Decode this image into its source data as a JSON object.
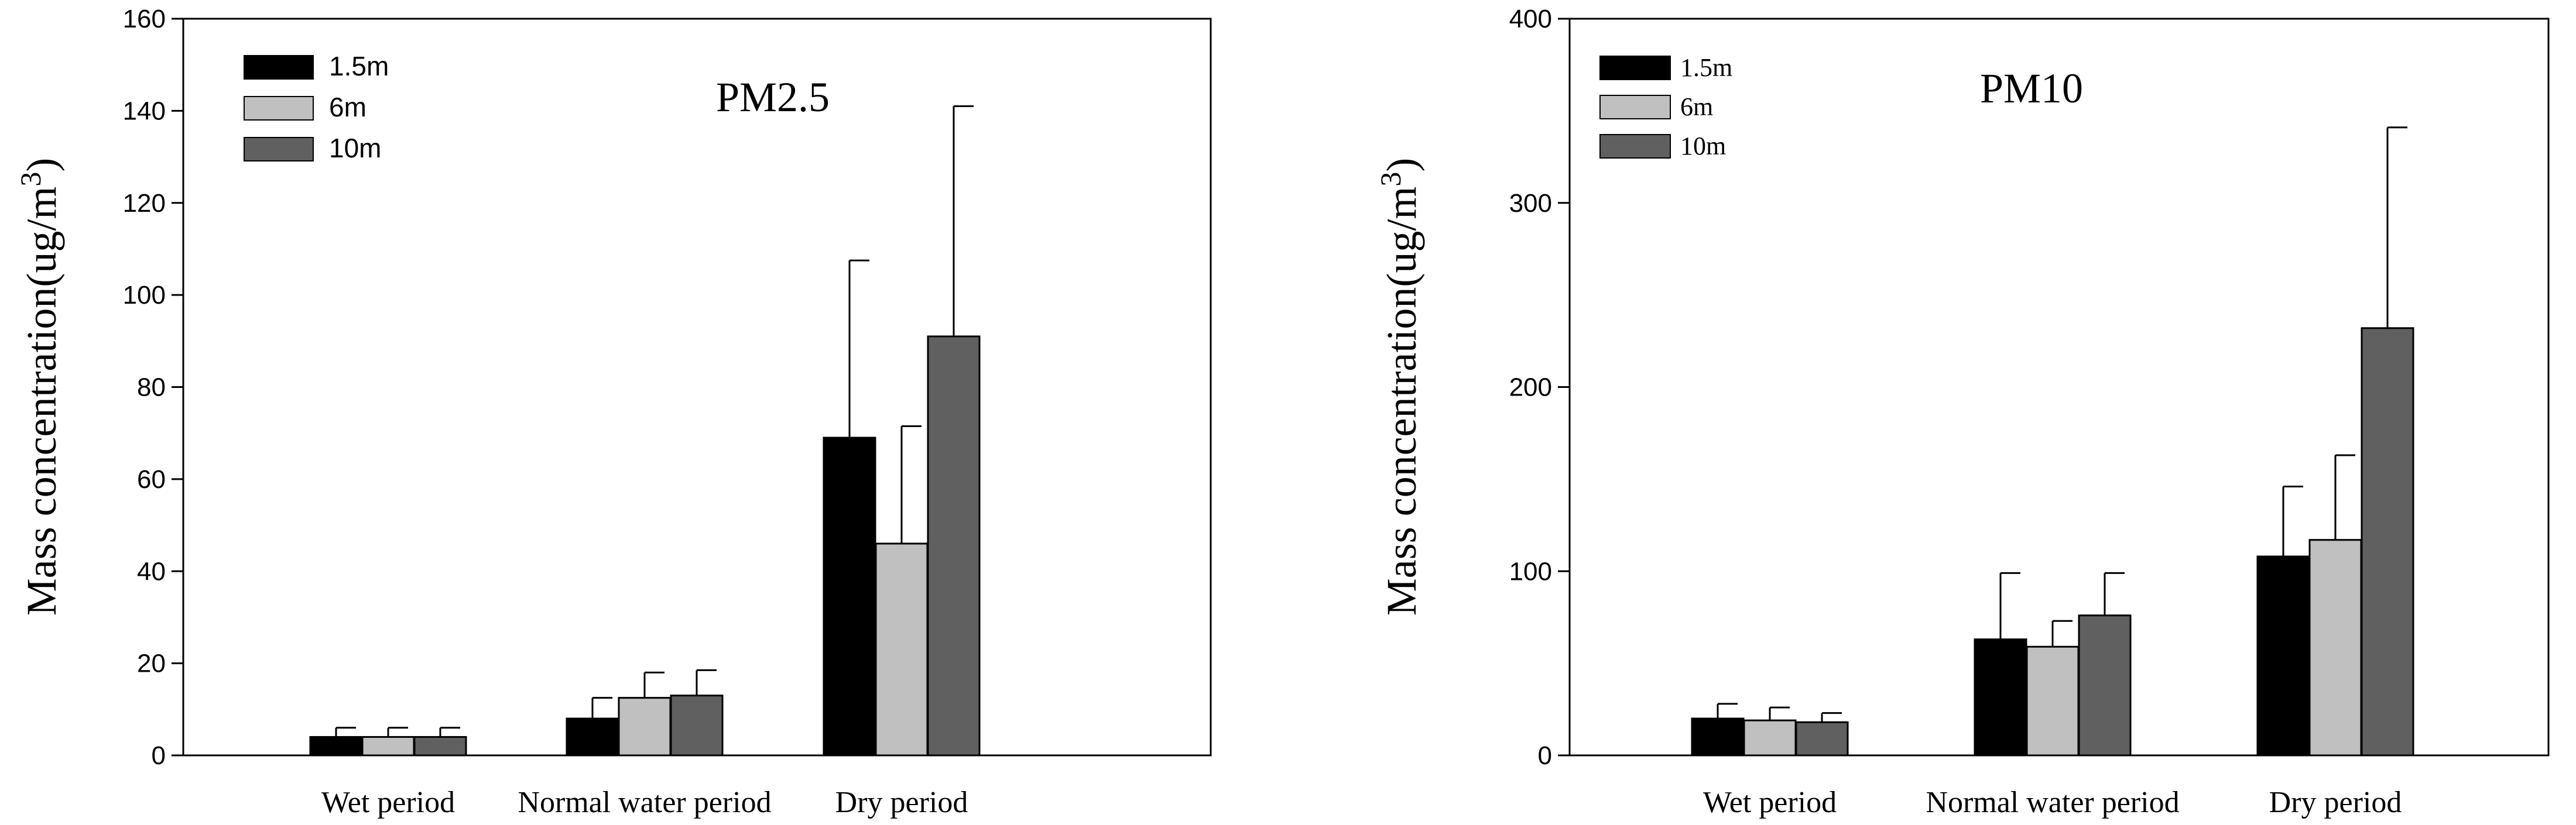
{
  "colors": {
    "series_1_5m": "#000000",
    "series_6m": "#c0c0c0",
    "series_10m": "#606060",
    "axis": "#000000",
    "background": "#ffffff"
  },
  "chart_data": [
    {
      "type": "bar",
      "title": "PM2.5",
      "xlabel": "",
      "ylabel": "Mass concentration(ug/m3)",
      "ylabel_main": "Mass concentration(ug/m",
      "ylabel_sup": "3",
      "ylabel_close": ")",
      "ylim": [
        0,
        160
      ],
      "yticks": [
        "0",
        "20",
        "40",
        "60",
        "80",
        "100",
        "120",
        "140",
        "160"
      ],
      "categories": [
        "Wet period",
        "Normal water period",
        "Dry period"
      ],
      "legend_position": "top-left",
      "grid": false,
      "series": [
        {
          "name": "1.5m",
          "values": [
            4,
            8,
            69
          ],
          "errors": [
            2,
            4.5,
            38.5
          ]
        },
        {
          "name": "6m",
          "values": [
            4,
            12.5,
            46
          ],
          "errors": [
            2,
            5.5,
            25.5
          ]
        },
        {
          "name": "10m",
          "values": [
            4,
            13,
            91
          ],
          "errors": [
            2,
            5.5,
            50
          ]
        }
      ]
    },
    {
      "type": "bar",
      "title": "PM10",
      "xlabel": "",
      "ylabel": "Mass concentration(ug/m3)",
      "ylabel_main": "Mass concentration(ug/m",
      "ylabel_sup": "3",
      "ylabel_close": ")",
      "ylim": [
        0,
        400
      ],
      "yticks": [
        "0",
        "100",
        "200",
        "300",
        "400"
      ],
      "categories": [
        "Wet period",
        "Normal water period",
        "Dry period"
      ],
      "legend_position": "top-left",
      "grid": false,
      "series": [
        {
          "name": "1.5m",
          "values": [
            20,
            63,
            108
          ],
          "errors": [
            8,
            36,
            38
          ]
        },
        {
          "name": "6m",
          "values": [
            19,
            59,
            117
          ],
          "errors": [
            7,
            14,
            46
          ]
        },
        {
          "name": "10m",
          "values": [
            18,
            76,
            232
          ],
          "errors": [
            5,
            23,
            109
          ]
        }
      ]
    }
  ]
}
